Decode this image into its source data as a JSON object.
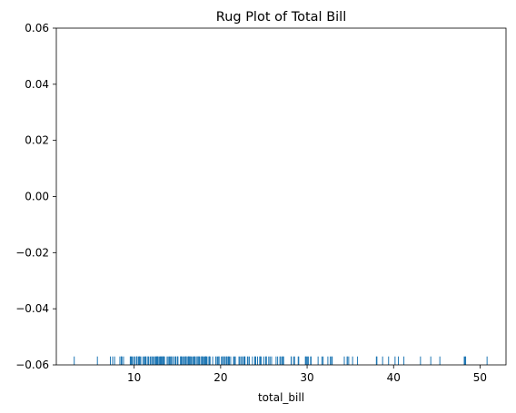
{
  "chart_data": {
    "type": "rug",
    "title": "Rug Plot of Total Bill",
    "xlabel": "total_bill",
    "ylabel": "",
    "xlim": [
      1.0,
      53.0
    ],
    "ylim": [
      -0.06,
      0.06
    ],
    "x_ticks": [
      10,
      20,
      30,
      40,
      50
    ],
    "x_tick_labels": [
      "10",
      "20",
      "30",
      "40",
      "50"
    ],
    "y_ticks": [
      -0.06,
      -0.04,
      -0.02,
      0.0,
      0.02,
      0.04,
      0.06
    ],
    "y_tick_labels": [
      "−0.06",
      "−0.04",
      "−0.02",
      "0.00",
      "0.02",
      "0.04",
      "0.06"
    ],
    "grid": false,
    "color": "#1f77b4",
    "rug_height_fraction": 0.025,
    "values": [
      3.07,
      5.75,
      7.25,
      7.51,
      7.74,
      8.35,
      8.51,
      8.52,
      8.58,
      8.77,
      9.55,
      9.6,
      9.68,
      9.78,
      9.94,
      10.07,
      10.27,
      10.29,
      10.33,
      10.34,
      10.51,
      10.59,
      10.63,
      10.65,
      10.77,
      11.02,
      11.17,
      11.24,
      11.35,
      11.38,
      11.59,
      11.61,
      11.69,
      11.87,
      12.02,
      12.03,
      12.16,
      12.26,
      12.43,
      12.46,
      12.54,
      12.6,
      12.66,
      12.69,
      12.74,
      12.76,
      12.9,
      13.0,
      13.03,
      13.13,
      13.16,
      13.27,
      13.28,
      13.37,
      13.39,
      13.42,
      13.51,
      13.81,
      13.94,
      14.07,
      14.15,
      14.26,
      14.31,
      14.48,
      14.52,
      14.73,
      14.78,
      14.83,
      15.01,
      15.04,
      15.06,
      15.36,
      15.38,
      15.42,
      15.48,
      15.53,
      15.69,
      15.77,
      15.81,
      15.95,
      15.98,
      16.0,
      16.04,
      16.21,
      16.27,
      16.29,
      16.31,
      16.4,
      16.45,
      16.47,
      16.58,
      16.66,
      16.82,
      16.93,
      16.97,
      16.99,
      17.07,
      17.26,
      17.29,
      17.31,
      17.46,
      17.47,
      17.51,
      17.59,
      17.78,
      17.81,
      17.82,
      17.89,
      17.92,
      18.04,
      18.15,
      18.24,
      18.26,
      18.28,
      18.29,
      18.35,
      18.43,
      18.64,
      18.69,
      18.71,
      18.78,
      19.08,
      19.44,
      19.49,
      19.65,
      19.77,
      19.81,
      19.82,
      20.08,
      20.23,
      20.27,
      20.29,
      20.45,
      20.49,
      20.65,
      20.69,
      20.76,
      20.9,
      20.92,
      21.01,
      21.16,
      21.5,
      21.58,
      21.7,
      22.12,
      22.23,
      22.42,
      22.49,
      22.67,
      22.75,
      22.76,
      22.82,
      23.1,
      23.17,
      23.33,
      23.68,
      23.95,
      24.01,
      24.06,
      24.27,
      24.52,
      24.55,
      24.59,
      24.71,
      25.0,
      25.21,
      25.28,
      25.29,
      25.56,
      25.71,
      25.89,
      26.41,
      26.59,
      26.86,
      26.88,
      27.05,
      27.18,
      27.2,
      27.28,
      28.15,
      28.17,
      28.44,
      28.55,
      28.97,
      29.03,
      29.8,
      29.85,
      29.93,
      30.06,
      30.14,
      30.4,
      30.46,
      31.27,
      31.71,
      31.85,
      32.4,
      32.68,
      32.83,
      32.9,
      34.3,
      34.63,
      34.65,
      34.81,
      35.26,
      35.83,
      38.01,
      38.07,
      38.73,
      39.42,
      40.17,
      40.55,
      41.19,
      43.11,
      44.3,
      45.35,
      48.17,
      48.27,
      48.33,
      50.81
    ]
  }
}
